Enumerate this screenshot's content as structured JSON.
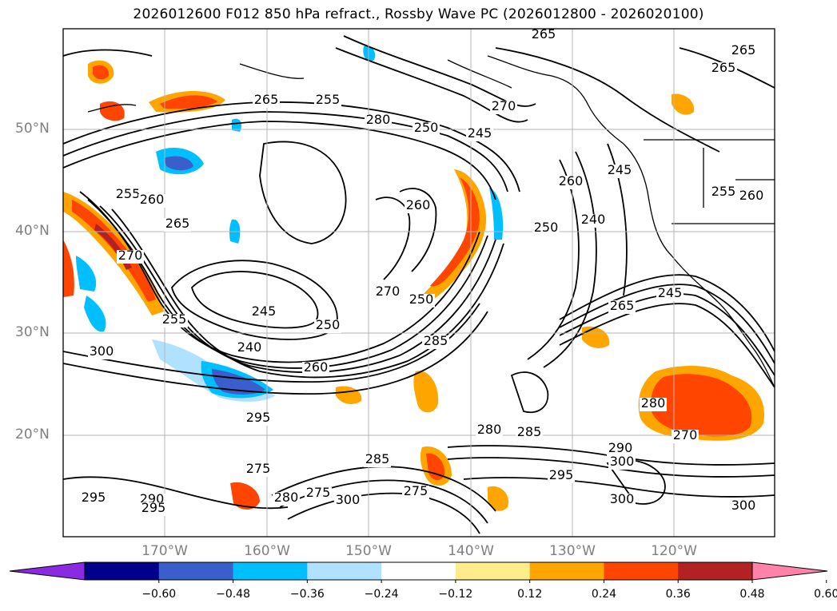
{
  "title": "2026012600 F012 850 hPa refract., Rossby Wave PC (2026012800 - 2026020100)",
  "map": {
    "lat_labels": [
      "50°N",
      "40°N",
      "30°N",
      "20°N"
    ],
    "lon_labels": [
      "170°W",
      "160°W",
      "150°W",
      "140°W",
      "130°W",
      "120°W"
    ],
    "contour_labels": [
      {
        "text": "265"
      },
      {
        "text": "265"
      },
      {
        "text": "255"
      },
      {
        "text": "270"
      },
      {
        "text": "265"
      },
      {
        "text": "280"
      },
      {
        "text": "250"
      },
      {
        "text": "245"
      },
      {
        "text": "255"
      },
      {
        "text": "260"
      },
      {
        "text": "265"
      },
      {
        "text": "265"
      },
      {
        "text": "260"
      },
      {
        "text": "245"
      },
      {
        "text": "260"
      },
      {
        "text": "255"
      },
      {
        "text": "260"
      },
      {
        "text": "250"
      },
      {
        "text": "240"
      },
      {
        "text": "270"
      },
      {
        "text": "270"
      },
      {
        "text": "250"
      },
      {
        "text": "245"
      },
      {
        "text": "255"
      },
      {
        "text": "250"
      },
      {
        "text": "240"
      },
      {
        "text": "260"
      },
      {
        "text": "285"
      },
      {
        "text": "265"
      },
      {
        "text": "245"
      },
      {
        "text": "300"
      },
      {
        "text": "280"
      },
      {
        "text": "270"
      },
      {
        "text": "280"
      },
      {
        "text": "285"
      },
      {
        "text": "290"
      },
      {
        "text": "300"
      },
      {
        "text": "295"
      },
      {
        "text": "300"
      },
      {
        "text": "300"
      },
      {
        "text": "285"
      },
      {
        "text": "275"
      },
      {
        "text": "295"
      },
      {
        "text": "275"
      },
      {
        "text": "300"
      },
      {
        "text": "280"
      },
      {
        "text": "295"
      },
      {
        "text": "290"
      },
      {
        "text": "295"
      },
      {
        "text": "275"
      }
    ]
  },
  "colorbar": {
    "colors": [
      "#8a2be2",
      "#00008b",
      "#3a5fcd",
      "#00bfff",
      "#b0e2ff",
      "#ffffff",
      "#ffec8b",
      "#ffa500",
      "#ff4500",
      "#b22222",
      "#ff82ab"
    ],
    "tick_labels": [
      "−0.60",
      "−0.48",
      "−0.36",
      "−0.24",
      "−0.12",
      "0.12",
      "0.24",
      "0.36",
      "0.48",
      "0.60"
    ]
  }
}
